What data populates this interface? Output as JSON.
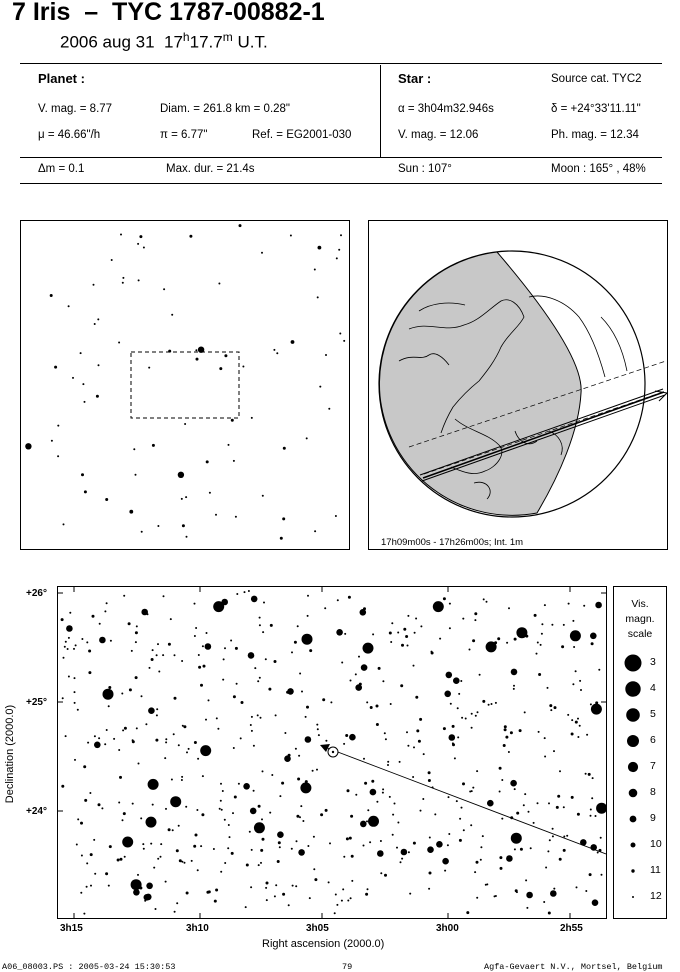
{
  "header": {
    "title": "7 Iris  –  TYC 1787-00882-1",
    "date": "2006 aug 31",
    "time_h": "17",
    "time_h_unit": "h",
    "time_m": "17.7",
    "time_m_unit": "m",
    "time_scale": "U.T."
  },
  "planet": {
    "heading": "Planet :",
    "vmag": "V. mag. =  8.77",
    "diam": "Diam. = 261.8 km = 0.28\"",
    "mu": "μ =  46.66\"/h",
    "pi": "π =  6.77\"",
    "ref": "Ref. = EG2001-030",
    "dm": "Δm = 0.1",
    "maxdur": "Max. dur. = 21.4s"
  },
  "star": {
    "heading": "Star :",
    "source": "Source cat.  TYC2",
    "alpha": "α = 3h04m32.946s",
    "delta": "δ = +24°33'11.11\"",
    "vmag": "V. mag. = 12.06",
    "phmag": "Ph. mag. = 12.34",
    "sun": "Sun : 107°",
    "moon": "Moon : 165° , 48%"
  },
  "globe": {
    "caption": "17h09m00s - 17h26m00s; Int.  1m"
  },
  "chart": {
    "ylabel": "Declination (2000.0)",
    "xlabel": "Right ascension (2000.0)",
    "yticks": [
      "+26°",
      "+25°",
      "+24°"
    ],
    "xticks": [
      "3h15",
      "3h10",
      "3h05",
      "3h00",
      "2h55"
    ]
  },
  "scale": {
    "title1": "Vis.",
    "title2": "magn.",
    "title3": "scale",
    "mags": [
      "3",
      "4",
      "5",
      "6",
      "7",
      "8",
      "9",
      "10",
      "11",
      "12"
    ]
  },
  "footer": {
    "left": "A06_08003.PS : 2005-03-24 15:30:53",
    "center": "79",
    "right": "Agfa-Gevaert N.V., Mortsel, Belgium"
  }
}
